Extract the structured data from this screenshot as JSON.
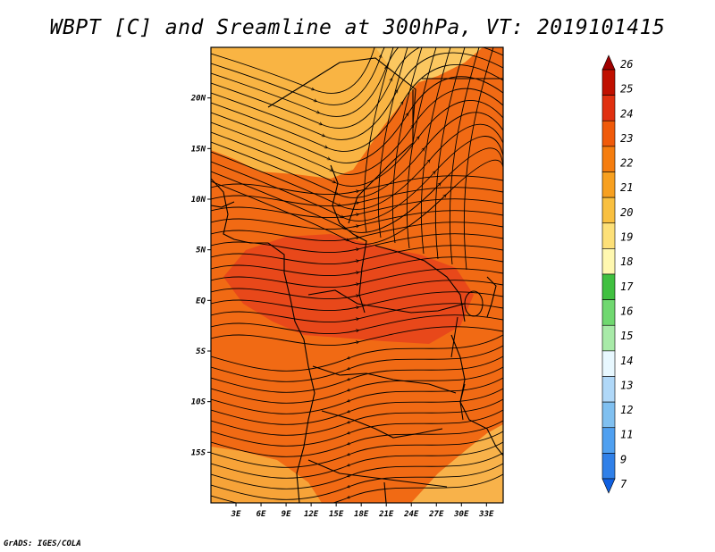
{
  "title": "WBPT [C] and Sreamline at 300hPa, VT: 2019101415",
  "credit": "GrADS: IGES/COLA",
  "map": {
    "lat_range": [
      -20,
      25
    ],
    "lon_range": [
      0,
      35
    ],
    "lat_ticks": [
      {
        "value": 20,
        "label": "20N"
      },
      {
        "value": 15,
        "label": "15N"
      },
      {
        "value": 10,
        "label": "10N"
      },
      {
        "value": 5,
        "label": "5N"
      },
      {
        "value": 0,
        "label": "EQ"
      },
      {
        "value": -5,
        "label": "5S"
      },
      {
        "value": -10,
        "label": "10S"
      },
      {
        "value": -15,
        "label": "15S"
      }
    ],
    "lon_ticks": [
      {
        "value": 3,
        "label": "3E"
      },
      {
        "value": 6,
        "label": "6E"
      },
      {
        "value": 9,
        "label": "9E"
      },
      {
        "value": 12,
        "label": "12E"
      },
      {
        "value": 15,
        "label": "15E"
      },
      {
        "value": 18,
        "label": "18E"
      },
      {
        "value": 21,
        "label": "21E"
      },
      {
        "value": 24,
        "label": "24E"
      },
      {
        "value": 27,
        "label": "27E"
      },
      {
        "value": 30,
        "label": "30E"
      },
      {
        "value": 33,
        "label": "33E"
      }
    ]
  },
  "colorbar": {
    "levels": [
      "26",
      "25",
      "24",
      "23",
      "22",
      "21",
      "20",
      "19",
      "18",
      "17",
      "16",
      "15",
      "14",
      "13",
      "12",
      "11",
      "9",
      "7"
    ],
    "colors": [
      "#a00000",
      "#c01000",
      "#e03010",
      "#f05a0a",
      "#f57d0f",
      "#f7a020",
      "#f9c040",
      "#fde078",
      "#fff8b0",
      "#40c040",
      "#70d870",
      "#a8eaa8",
      "#e8f8ff",
      "#b0d8f8",
      "#80c0f0",
      "#50a0f0",
      "#3080e8",
      "#1060e0"
    ]
  },
  "field": {
    "background": "#f16a14",
    "regions": [
      {
        "name": "nw-yellow",
        "color": "#f9b443"
      },
      {
        "name": "ne-yellow",
        "color": "#fbc760"
      },
      {
        "name": "center-red",
        "color": "#e8481a"
      },
      {
        "name": "sw-yellow",
        "color": "#f7a338"
      },
      {
        "name": "se-yellow",
        "color": "#f8b24a"
      }
    ]
  }
}
